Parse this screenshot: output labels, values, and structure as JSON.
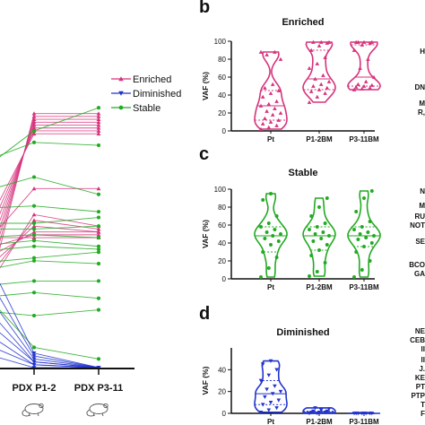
{
  "chart_data": [
    {
      "type": "line",
      "panel": "",
      "categories": [
        "",
        "PDX P1-2",
        "PDX P3-11"
      ],
      "legend": [
        {
          "name": "Enriched",
          "color": "#d6337c",
          "marker": "triangle-up"
        },
        {
          "name": "Diminished",
          "color": "#2233cc",
          "marker": "triangle-down"
        },
        {
          "name": "Stable",
          "color": "#22aa22",
          "marker": "circle"
        }
      ],
      "series": [
        {
          "name": "Enriched",
          "values": [
            [
              5,
              88,
              88
            ],
            [
              10,
              87,
              87
            ],
            [
              15,
              86,
              86
            ],
            [
              20,
              85,
              85
            ],
            [
              25,
              84,
              84
            ],
            [
              30,
              83,
              83
            ],
            [
              35,
              82,
              82
            ],
            [
              40,
              81,
              81
            ],
            [
              20,
              53,
              49
            ],
            [
              25,
              51,
              48
            ],
            [
              30,
              49,
              47
            ],
            [
              35,
              47,
              47
            ],
            [
              40,
              46,
              46
            ],
            [
              45,
              45,
              45
            ],
            [
              38,
              62,
              62
            ]
          ]
        },
        {
          "name": "Stable",
          "values": [
            [
              60,
              66,
              60
            ],
            [
              55,
              56,
              54
            ],
            [
              50,
              50,
              52
            ],
            [
              48,
              48,
              49
            ],
            [
              45,
              46,
              45
            ],
            [
              42,
              44,
              42
            ],
            [
              40,
              42,
              41
            ],
            [
              36,
              38,
              40
            ],
            [
              33,
              37,
              36
            ],
            [
              28,
              30,
              30
            ],
            [
              24,
              26,
              24
            ],
            [
              20,
              18,
              20
            ],
            [
              66,
              82,
              90
            ],
            [
              70,
              78,
              77
            ],
            [
              30,
              7,
              3
            ]
          ]
        },
        {
          "name": "Diminished",
          "values": [
            [
              48,
              5,
              0
            ],
            [
              40,
              4,
              0
            ],
            [
              32,
              3,
              0
            ],
            [
              26,
              2,
              0
            ],
            [
              20,
              2,
              0
            ],
            [
              15,
              1,
              0
            ],
            [
              10,
              1,
              0
            ],
            [
              6,
              0,
              0
            ]
          ]
        }
      ]
    },
    {
      "type": "violin",
      "panel": "b",
      "title": "Enriched",
      "ylabel": "VAF (%)",
      "ylim": [
        0,
        100
      ],
      "yticks": [
        0,
        20,
        40,
        60,
        80,
        100
      ],
      "categories": [
        "Pt",
        "P1-2BM",
        "P3-11BM"
      ],
      "color": "#d6337c",
      "marker": "triangle-up",
      "points": [
        [
          2,
          4,
          6,
          8,
          10,
          12,
          14,
          18,
          20,
          22,
          25,
          28,
          30,
          33,
          38,
          42,
          45,
          48,
          52,
          80,
          85,
          88,
          88
        ],
        [
          32,
          38,
          42,
          44,
          46,
          48,
          50,
          52,
          55,
          58,
          62,
          70,
          75,
          82,
          90,
          95,
          98,
          99,
          99,
          99
        ],
        [
          46,
          47,
          48,
          49,
          50,
          51,
          52,
          55,
          60,
          70,
          80,
          90,
          96,
          98,
          99,
          99,
          99,
          99
        ]
      ]
    },
    {
      "type": "violin",
      "panel": "c",
      "title": "Stable",
      "ylabel": "VAF (%)",
      "ylim": [
        0,
        100
      ],
      "yticks": [
        0,
        20,
        40,
        60,
        80,
        100
      ],
      "categories": [
        "Pt",
        "P1-2BM",
        "P3-11BM"
      ],
      "color": "#22aa22",
      "marker": "circle",
      "points": [
        [
          2,
          12,
          24,
          30,
          38,
          42,
          45,
          48,
          50,
          52,
          55,
          58,
          62,
          70,
          88,
          95
        ],
        [
          3,
          8,
          18,
          26,
          32,
          38,
          42,
          45,
          48,
          50,
          52,
          55,
          58,
          62,
          70,
          80,
          90
        ],
        [
          2,
          10,
          20,
          30,
          36,
          40,
          44,
          46,
          48,
          50,
          52,
          55,
          58,
          64,
          75,
          90,
          98
        ]
      ]
    },
    {
      "type": "violin",
      "panel": "d",
      "title": "Diminished",
      "ylabel": "VAF (%)",
      "ylim": [
        0,
        60
      ],
      "yticks": [
        0,
        20,
        40
      ],
      "categories": [
        "Pt",
        "P1-2BM",
        "P3-11BM"
      ],
      "color": "#2233cc",
      "marker": "triangle-down",
      "points": [
        [
          1,
          3,
          5,
          8,
          10,
          12,
          15,
          18,
          20,
          22,
          25,
          30,
          35,
          40,
          45,
          48
        ],
        [
          0,
          0,
          1,
          1,
          1,
          2,
          2,
          3,
          4,
          5
        ],
        [
          0,
          0,
          0,
          0,
          0,
          0,
          0,
          0
        ]
      ]
    }
  ],
  "right_edge_labels": [
    "H",
    "DN",
    "M",
    "R,",
    "N",
    "M",
    "RU",
    "NOT",
    "SE",
    "BCO",
    "GA",
    "NE",
    "CEB",
    "II",
    "II",
    "J.",
    "KE",
    "PT",
    "PTP",
    "T",
    "F"
  ]
}
